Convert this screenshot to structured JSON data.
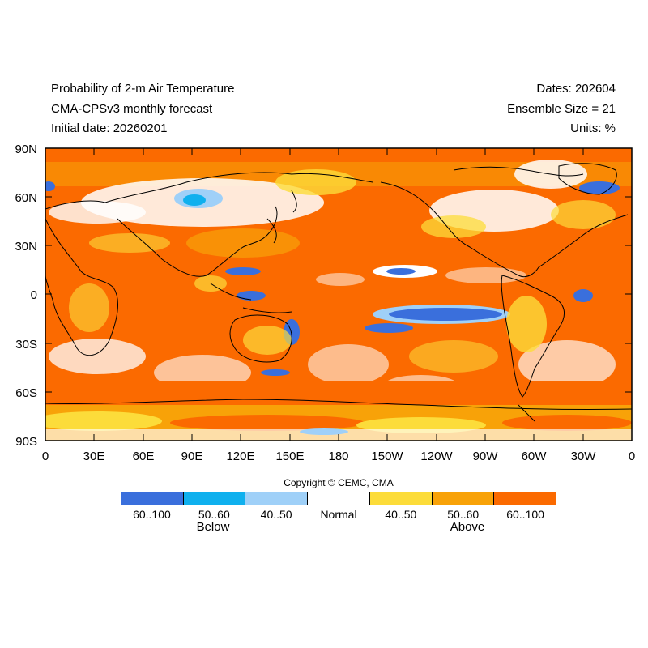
{
  "header": {
    "title_line1": "Probability of 2-m Air Temperature",
    "title_line2": "CMA-CPSv3 monthly forecast",
    "title_line3": "Initial date: 20260201",
    "dates": "Dates: 202604",
    "ensemble": "Ensemble Size = 21",
    "units": "Units: %"
  },
  "map": {
    "projection": "cylindrical equidistant",
    "lon_range": [
      0,
      360
    ],
    "lat_range": [
      -90,
      90
    ],
    "y_ticks": [
      "90N",
      "60N",
      "30N",
      "0",
      "30S",
      "60S",
      "90S"
    ],
    "x_ticks": [
      "0",
      "30E",
      "60E",
      "90E",
      "120E",
      "150E",
      "180",
      "150W",
      "120W",
      "90W",
      "60W",
      "30W",
      "0"
    ],
    "colors": {
      "below_high": "#3a6fdc",
      "below_mid": "#0fb0ee",
      "below_low": "#9fd0f8",
      "normal": "#ffffff",
      "above_low": "#fcdc3a",
      "above_mid": "#f8a208",
      "above_high": "#fb6a00"
    }
  },
  "legend": {
    "copyright": "Copyright © CEMC, CMA",
    "labels": [
      "60..100",
      "50..60",
      "40..50",
      "Normal",
      "40..50",
      "50..60",
      "60..100"
    ],
    "colors": [
      "#3a6fdc",
      "#0fb0ee",
      "#9fd0f8",
      "#ffffff",
      "#fcdc3a",
      "#f8a208",
      "#fb6a00"
    ],
    "below_label": "Below",
    "above_label": "Above"
  }
}
